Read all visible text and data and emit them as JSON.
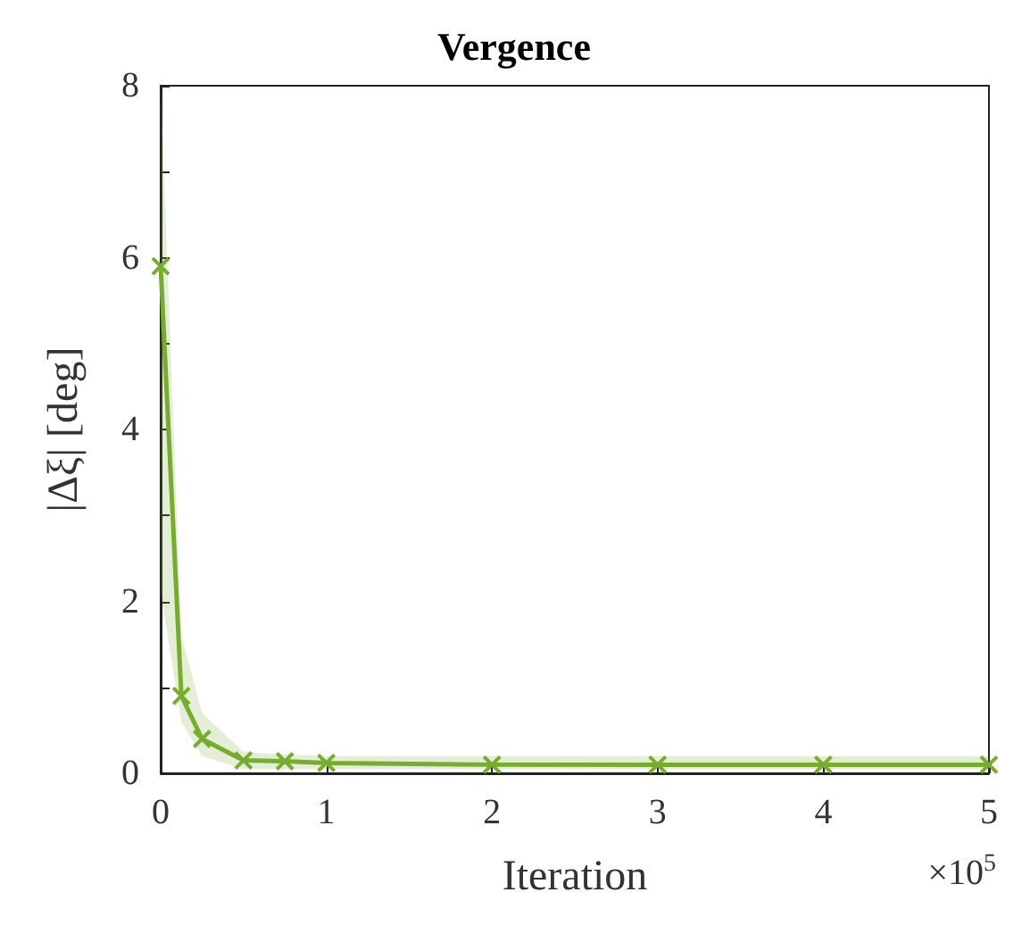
{
  "chart_data": {
    "type": "line",
    "title": "Vergence",
    "xlabel": "Iteration",
    "ylabel": "|Δξ| [deg]",
    "annotations": [
      "×10$^{5}$"
    ],
    "x": [
      0,
      0.125,
      0.25,
      0.5,
      0.75,
      1,
      2,
      3,
      4,
      5
    ],
    "series": [
      {
        "color": "#77ac30",
        "values": [
          5.9,
          0.9,
          0.4,
          0.15,
          0.14,
          0.12,
          0.1,
          0.1,
          0.1,
          0.1
        ],
        "lower": [
          2.1,
          0.6,
          0.2,
          0.05,
          0.05,
          0.05,
          0.05,
          0.05,
          0.05,
          0.05
        ],
        "upper": [
          8,
          1.6,
          0.7,
          0.25,
          0.22,
          0.2,
          0.2,
          0.2,
          0.2,
          0.2
        ]
      }
    ],
    "xlim": [
      0,
      5
    ],
    "xticks": [
      0,
      1,
      2,
      3,
      4,
      5
    ],
    "ylim": [
      0,
      8
    ],
    "yticks": [
      0,
      {
        "value": 1,
        "label": null
      },
      2,
      {
        "value": 3,
        "label": null
      },
      4,
      {
        "value": 5,
        "label": null
      },
      6,
      {
        "value": 7,
        "label": null
      },
      8
    ],
    "grid": false,
    "marker": "cross",
    "line_style": "solid"
  }
}
